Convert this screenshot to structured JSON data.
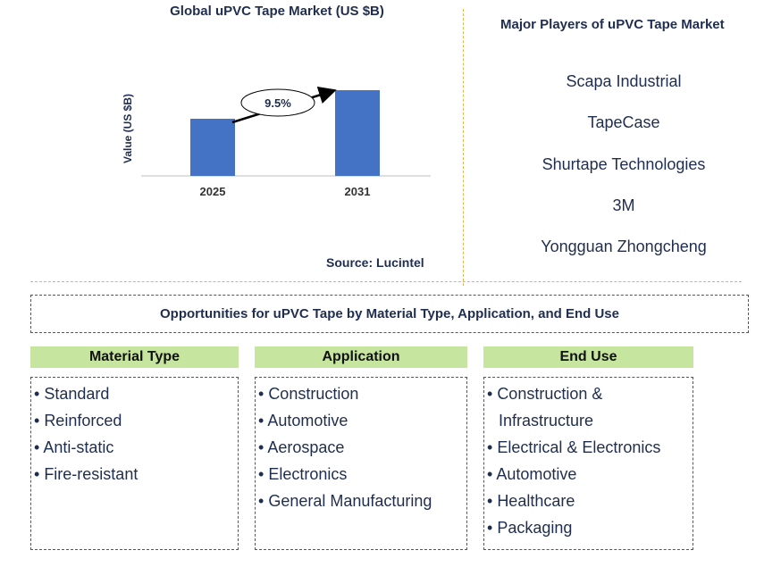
{
  "chart": {
    "title": "Global uPVC Tape Market (US $B)",
    "source": "Source: Lucintel"
  },
  "chart_data": {
    "type": "bar",
    "categories": [
      "2025",
      "2031"
    ],
    "series": [
      {
        "values": [
          1.0,
          1.5
        ]
      }
    ],
    "ylabel": "Value (US $B)",
    "annotation": "9.5%",
    "bar_color": "#4472c4",
    "grid": false
  },
  "players": {
    "title": "Major Players of uPVC Tape Market",
    "items": [
      "Scapa Industrial",
      "TapeCase",
      "Shurtape Technologies",
      "3M",
      "Yongguan Zhongcheng"
    ]
  },
  "opportunities": {
    "title": "Opportunities for uPVC Tape by Material Type, Application, and End Use"
  },
  "columns": [
    {
      "title": "Material Type",
      "items": [
        "Standard",
        "Reinforced",
        "Anti-static",
        "Fire-resistant"
      ]
    },
    {
      "title": "Application",
      "items": [
        "Construction",
        "Automotive",
        "Aerospace",
        "Electronics",
        "General Manufacturing"
      ]
    },
    {
      "title": "End Use",
      "items": [
        "Construction & Infrastructure",
        "Electrical & Electronics",
        "Automotive",
        "Healthcare",
        "Packaging"
      ]
    }
  ],
  "colors": {
    "header_bg": "#c6e6a0",
    "separator": "#e8b24a",
    "text": "#1f2d4f"
  }
}
